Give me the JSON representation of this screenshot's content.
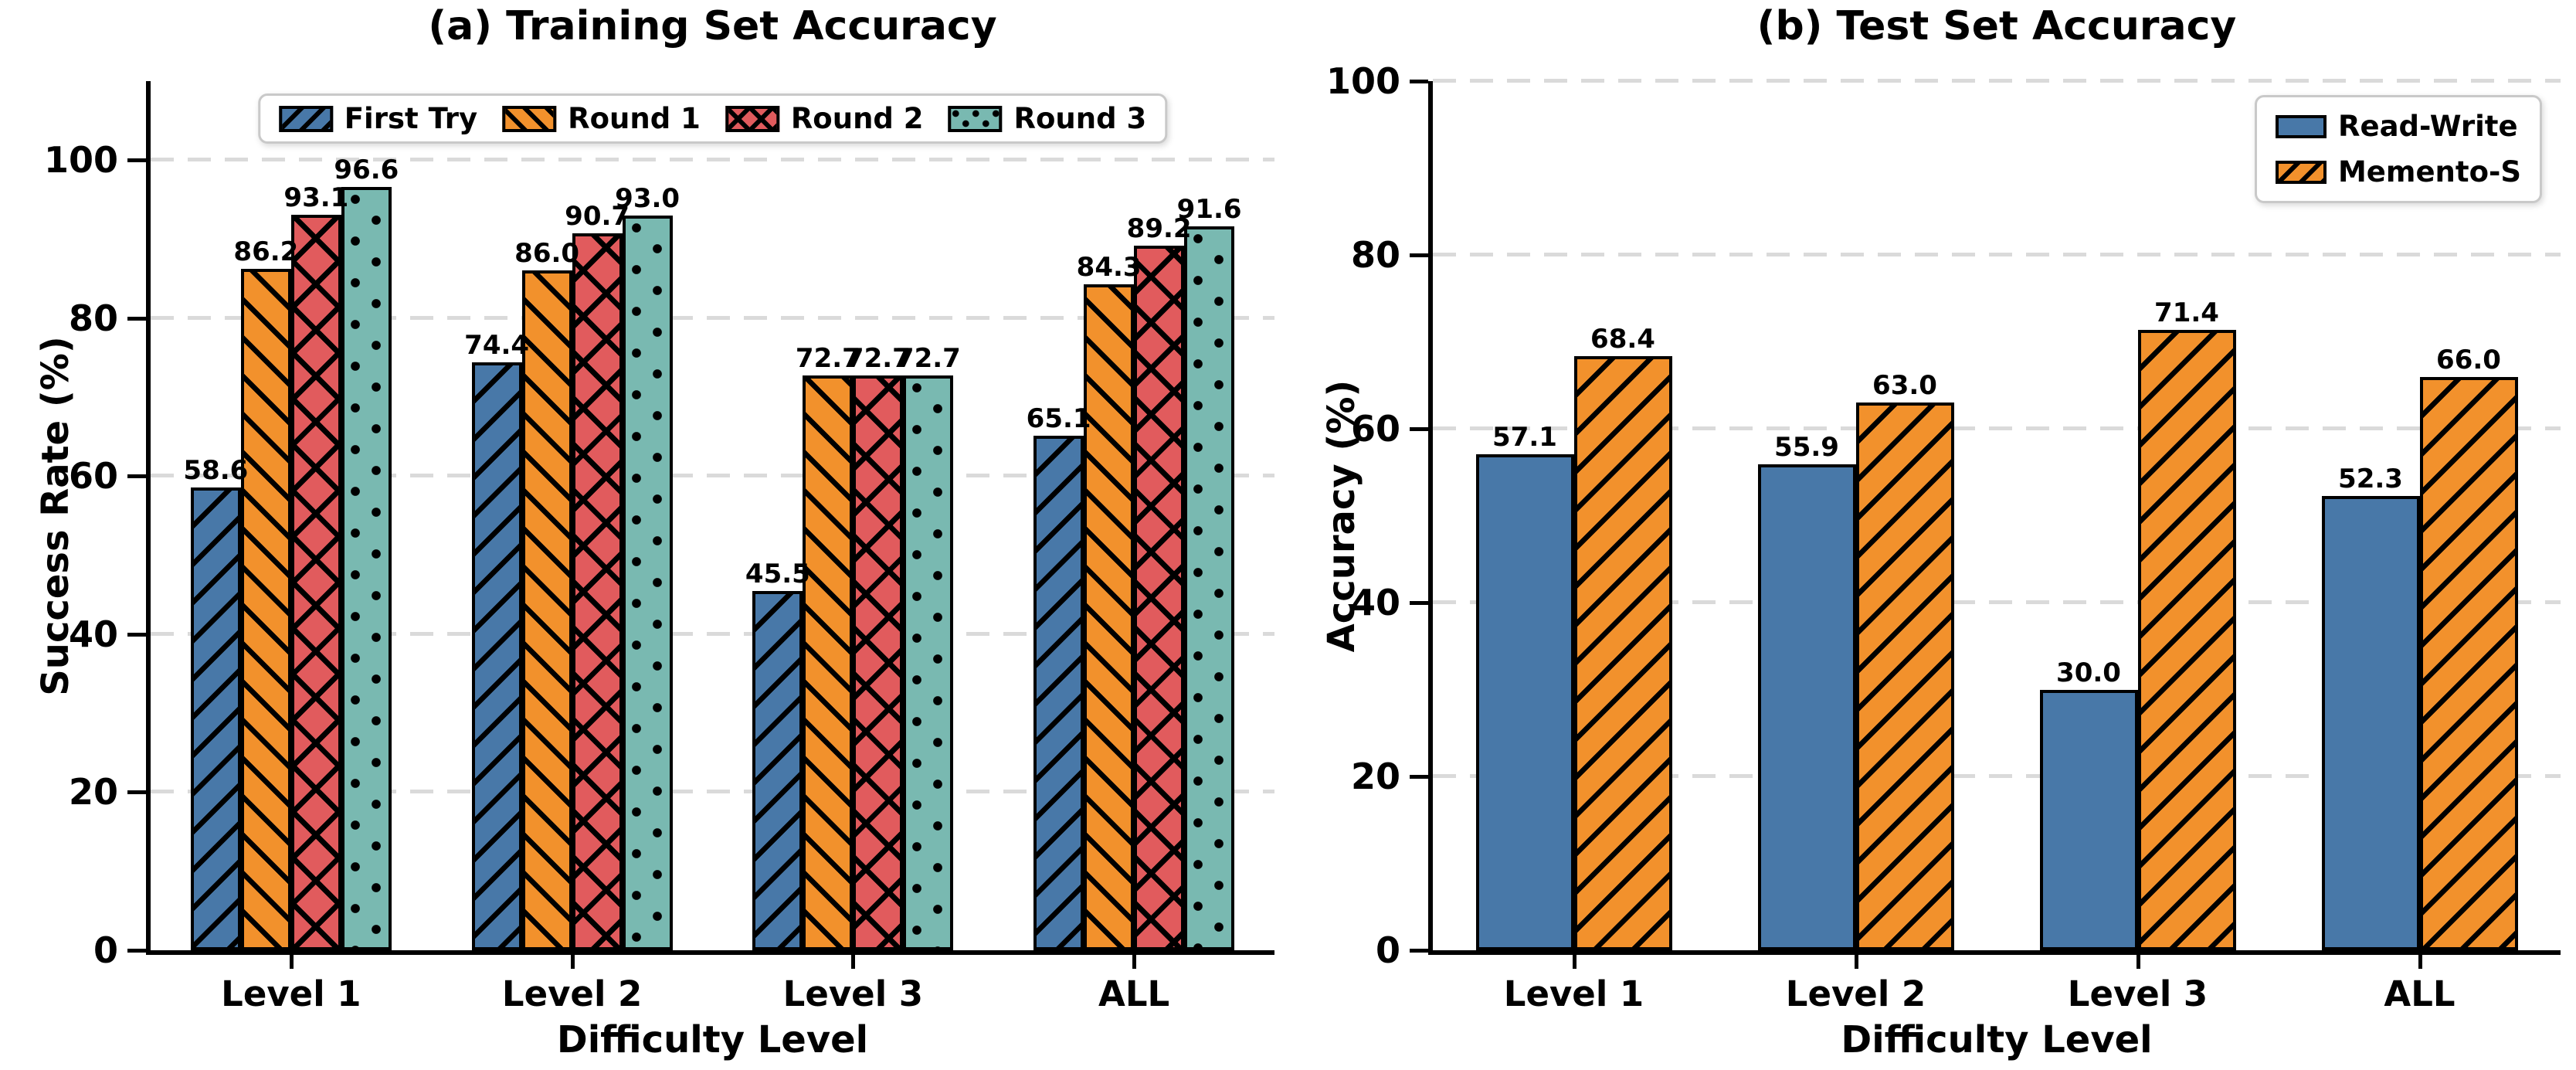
{
  "chart_data": [
    {
      "type": "bar",
      "title": "(a) Training Set Accuracy",
      "xlabel": "Difficulty Level",
      "ylabel": "Success Rate (%)",
      "categories": [
        "Level 1",
        "Level 2",
        "Level 3",
        "ALL"
      ],
      "series": [
        {
          "name": "First Try",
          "color": "#4878A8",
          "hatch": "/",
          "values": [
            58.6,
            74.4,
            45.5,
            65.1
          ]
        },
        {
          "name": "Round 1",
          "color": "#F2912C",
          "hatch": "\\",
          "values": [
            86.2,
            86.0,
            72.7,
            84.3
          ]
        },
        {
          "name": "Round 2",
          "color": "#E15B5D",
          "hatch": "x",
          "values": [
            93.1,
            90.7,
            72.7,
            89.2
          ]
        },
        {
          "name": "Round 3",
          "color": "#79B9B1",
          "hatch": ".",
          "values": [
            96.6,
            93.0,
            72.7,
            91.6
          ]
        }
      ],
      "ylim": [
        0,
        110
      ],
      "yticks": [
        0,
        20,
        40,
        60,
        80,
        100
      ],
      "grid": "horizontal-dashed",
      "legend_position": "top-center",
      "bar_labels": true
    },
    {
      "type": "bar",
      "title": "(b) Test Set Accuracy",
      "xlabel": "Difficulty Level",
      "ylabel": "Accuracy (%)",
      "categories": [
        "Level 1",
        "Level 2",
        "Level 3",
        "ALL"
      ],
      "series": [
        {
          "name": "Read-Write",
          "color": "#4878A8",
          "hatch": "",
          "values": [
            57.1,
            55.9,
            30.0,
            52.3
          ]
        },
        {
          "name": "Memento-S",
          "color": "#F2912C",
          "hatch": "/",
          "values": [
            68.4,
            63.0,
            71.4,
            66.0
          ]
        }
      ],
      "ylim": [
        0,
        100
      ],
      "yticks": [
        0,
        20,
        40,
        60,
        80,
        100
      ],
      "grid": "horizontal-dashed",
      "legend_position": "top-right",
      "bar_labels": true
    }
  ],
  "colors": {
    "grid": "#DADADA",
    "axis": "#000000",
    "text": "#000000",
    "legend_border": "#C9C9C9",
    "background": "#FFFFFF"
  }
}
